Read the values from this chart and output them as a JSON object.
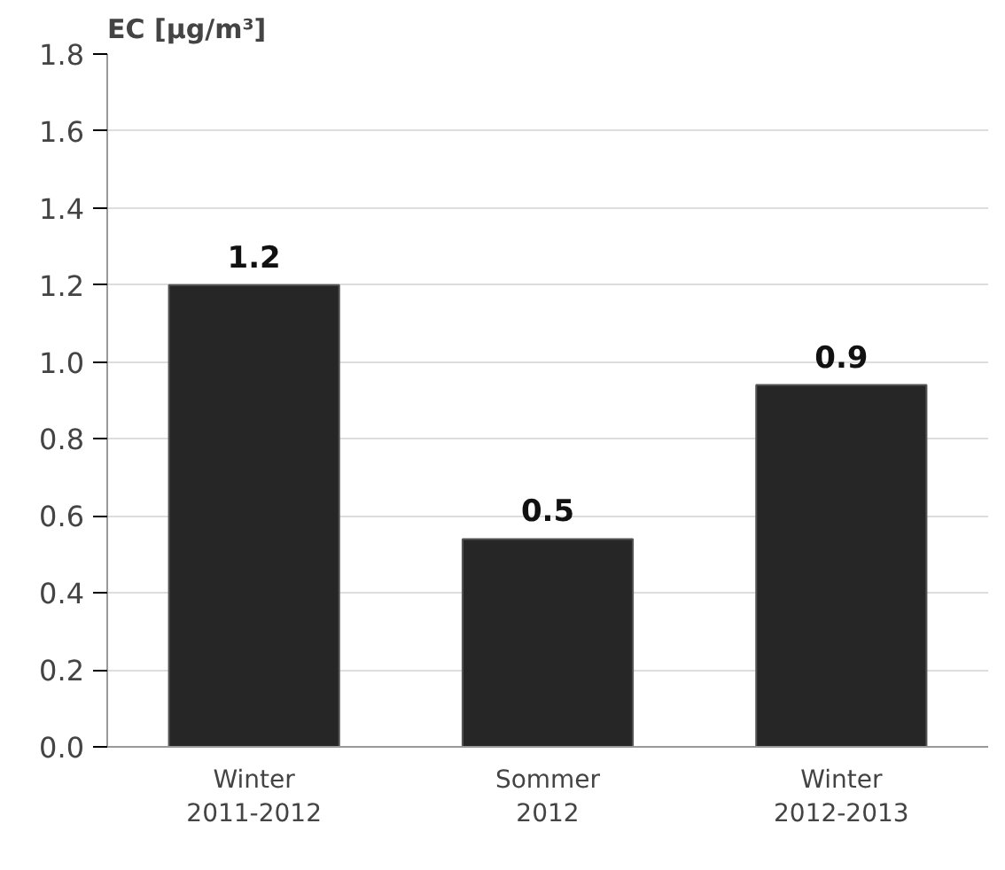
{
  "chart_data": {
    "type": "bar",
    "title": "EC  [µg/m³]",
    "categories": [
      "Winter\n2011-2012",
      "Sommer\n2012",
      "Winter\n2012-2013"
    ],
    "values": [
      1.2,
      0.54,
      0.94
    ],
    "value_labels": [
      "1.2",
      "0.5",
      "0.9"
    ],
    "color": "#262626",
    "ylim": [
      0,
      1.8
    ],
    "yticks": [
      {
        "value": 0,
        "label": "0.0"
      },
      {
        "value": 0.2,
        "label": "0.2"
      },
      {
        "value": 0.4,
        "label": "0.4"
      },
      {
        "value": 0.6,
        "label": "0.6"
      },
      {
        "value": 0.8,
        "label": "0.8"
      },
      {
        "value": 1.0,
        "label": "1.0"
      },
      {
        "value": 1.2,
        "label": "1.2"
      },
      {
        "value": 1.4,
        "label": "1.4"
      },
      {
        "value": 1.6,
        "label": "1.6"
      },
      {
        "value": 1.8,
        "label": "1.8"
      }
    ],
    "grid": "y"
  }
}
